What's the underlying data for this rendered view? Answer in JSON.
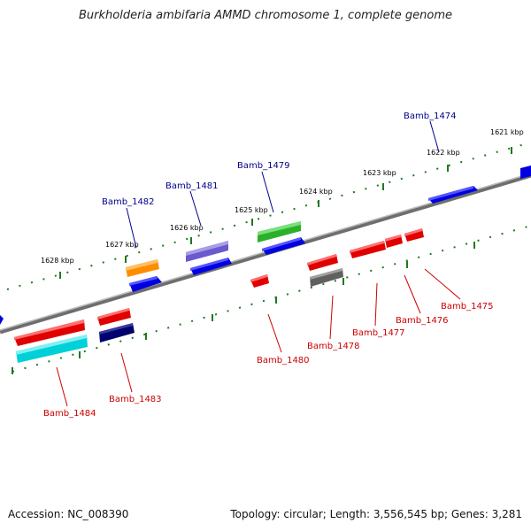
{
  "title": "Burkholderia ambifaria AMMD chromosome 1, complete genome",
  "footer": {
    "accession": "Accession: NC_008390",
    "stats": "Topology: circular; Length: 3,556,545 bp; Genes: 3,281"
  },
  "kbp_ticks": [
    "1621 kbp",
    "1622 kbp",
    "1623 kbp",
    "1624 kbp",
    "1625 kbp",
    "1626 kbp",
    "1627 kbp",
    "1628 kbp"
  ],
  "gene_labels": {
    "forward": [
      "Bamb_1474",
      "Bamb_1479",
      "Bamb_1481",
      "Bamb_1482"
    ],
    "reverse": [
      "Bamb_1475",
      "Bamb_1476",
      "Bamb_1477",
      "Bamb_1478",
      "Bamb_1480",
      "Bamb_1483",
      "Bamb_1484"
    ]
  },
  "colors": {
    "forward_label": "#00008b",
    "reverse_label": "#cc0000",
    "backbone": "#808080",
    "tick": "#006400"
  }
}
